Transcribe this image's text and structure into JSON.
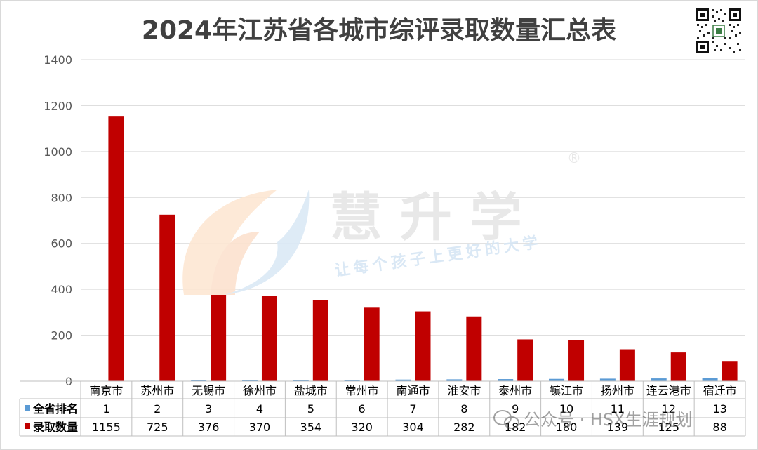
{
  "title": "2024年江苏省各城市综评录取数量汇总表",
  "watermark": {
    "brand": "慧 升 学",
    "registered": "®",
    "slogan": "让每个孩子上更好的大学",
    "account": "公众号 · HSX生涯规划"
  },
  "colors": {
    "rank": "#5b9bd5",
    "admit": "#c00000",
    "grid": "#d9d9d9",
    "text": "#000000"
  },
  "chart_data": {
    "type": "bar",
    "title": "2024年江苏省各城市综评录取数量汇总表",
    "categories": [
      "南京市",
      "苏州市",
      "无锡市",
      "徐州市",
      "盐城市",
      "常州市",
      "南通市",
      "淮安市",
      "泰州市",
      "镇江市",
      "扬州市",
      "连云港市",
      "宿迁市"
    ],
    "series": [
      {
        "name": "全省排名",
        "values": [
          1,
          2,
          3,
          4,
          5,
          6,
          7,
          8,
          9,
          10,
          11,
          12,
          13
        ]
      },
      {
        "name": "录取数量",
        "values": [
          1155,
          725,
          376,
          370,
          354,
          320,
          304,
          282,
          182,
          180,
          139,
          125,
          88
        ]
      }
    ],
    "ylim": [
      0,
      1400
    ],
    "yticks": [
      0,
      200,
      400,
      600,
      800,
      1000,
      1200,
      1400
    ],
    "grid": true,
    "legend": "data-table",
    "data_table": true
  }
}
